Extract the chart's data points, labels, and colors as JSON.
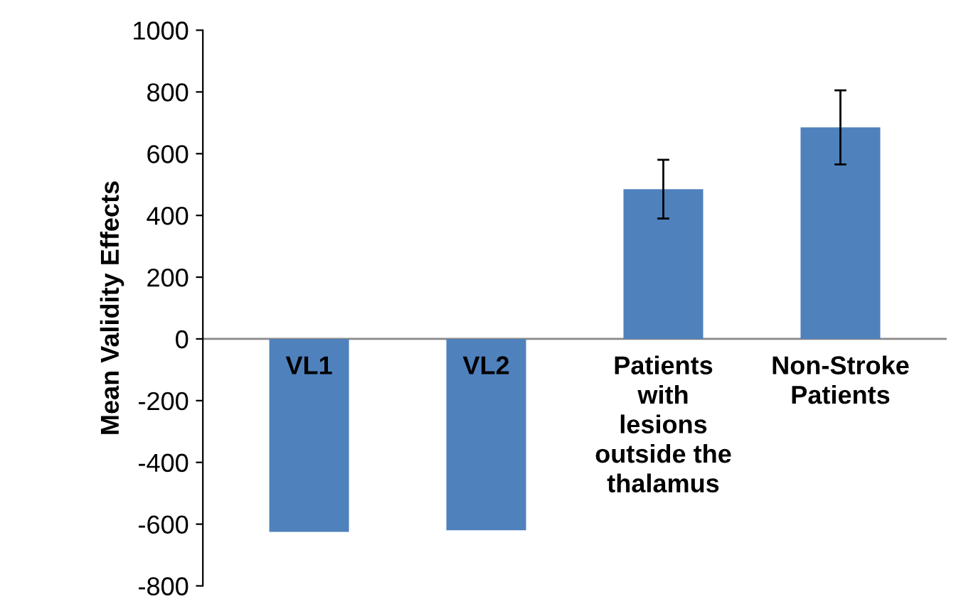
{
  "chart_data": {
    "type": "bar",
    "ylabel": "Mean Validity Effects",
    "categories": [
      "VL1",
      "VL2",
      "Patients\nwith\nlesions\noutside the\nthalamus",
      "Non-Stroke\nPatients"
    ],
    "values": [
      -625,
      -620,
      485,
      685
    ],
    "errors": [
      null,
      null,
      95,
      120
    ],
    "color": "#4f81bd",
    "ylim": [
      -800,
      1000
    ],
    "yticks": [
      -800,
      -600,
      -400,
      -200,
      0,
      200,
      400,
      600,
      800,
      1000
    ],
    "grid": false
  }
}
